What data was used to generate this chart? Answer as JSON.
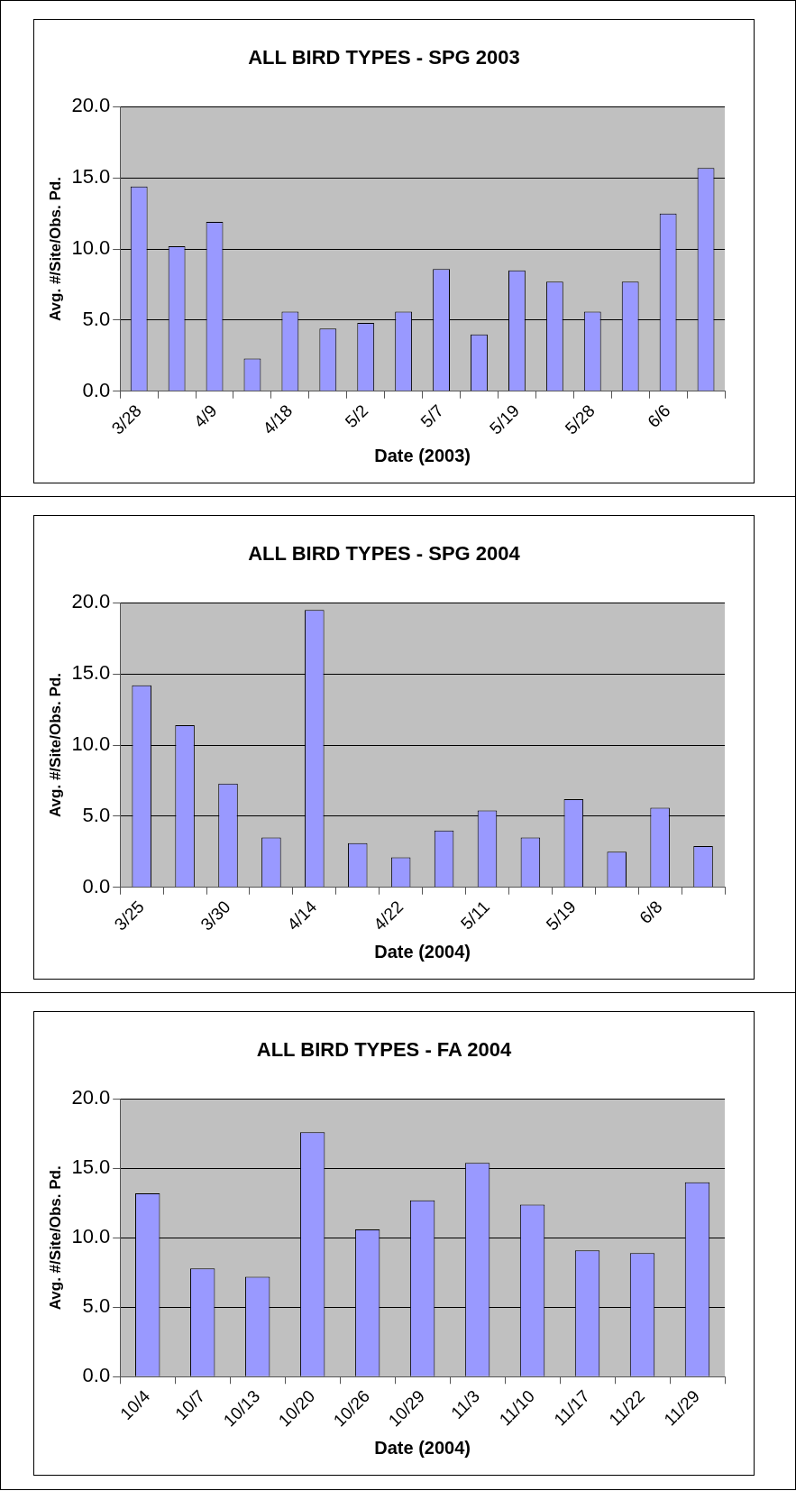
{
  "chart_data": [
    {
      "type": "bar",
      "title": "ALL BIRD TYPES - SPG 2003",
      "xlabel": "Date (2003)",
      "ylabel": "Avg. #/Site/Obs. Pd.",
      "categories": [
        "3/28",
        null,
        "4/9",
        null,
        "4/18",
        null,
        "5/2",
        null,
        "5/7",
        null,
        "5/19",
        null,
        "5/28",
        null,
        "6/6",
        null
      ],
      "values": [
        14.4,
        10.2,
        11.9,
        2.3,
        5.6,
        4.4,
        4.8,
        5.6,
        8.6,
        4.0,
        8.5,
        7.7,
        5.6,
        7.7,
        12.5,
        15.7
      ],
      "color": "#9999ff",
      "ylim": [
        0,
        20
      ],
      "yticks": [
        {
          "value": 0,
          "label": "0.0"
        },
        {
          "value": 5,
          "label": "5.0"
        },
        {
          "value": 10,
          "label": "10.0"
        },
        {
          "value": 15,
          "label": "15.0"
        },
        {
          "value": 20,
          "label": "20.0"
        }
      ],
      "grid": "y"
    },
    {
      "type": "bar",
      "title": "ALL BIRD TYPES - SPG 2004",
      "xlabel": "Date (2004)",
      "ylabel": "Avg. #/Site/Obs. Pd.",
      "categories": [
        "3/25",
        null,
        "3/30",
        null,
        "4/14",
        null,
        "4/22",
        null,
        "5/11",
        null,
        "5/19",
        null,
        "6/8",
        null
      ],
      "values": [
        14.2,
        11.4,
        7.3,
        3.5,
        19.5,
        3.1,
        2.1,
        4.0,
        5.4,
        3.5,
        6.2,
        2.5,
        5.6,
        2.9
      ],
      "color": "#9999ff",
      "ylim": [
        0,
        20
      ],
      "yticks": [
        {
          "value": 0,
          "label": "0.0"
        },
        {
          "value": 5,
          "label": "5.0"
        },
        {
          "value": 10,
          "label": "10.0"
        },
        {
          "value": 15,
          "label": "15.0"
        },
        {
          "value": 20,
          "label": "20.0"
        }
      ],
      "grid": "y"
    },
    {
      "type": "bar",
      "title": "ALL BIRD TYPES - FA 2004",
      "xlabel": "Date (2004)",
      "ylabel": "Avg. #/Site/Obs. Pd.",
      "categories": [
        "10/4",
        "10/7",
        "10/13",
        "10/20",
        "10/26",
        "10/29",
        "11/3",
        "11/10",
        "11/17",
        "11/22",
        "11/29"
      ],
      "values": [
        13.2,
        7.8,
        7.2,
        17.6,
        10.6,
        12.7,
        15.4,
        12.4,
        9.1,
        8.9,
        14.0
      ],
      "color": "#9999ff",
      "ylim": [
        0,
        20
      ],
      "yticks": [
        {
          "value": 0,
          "label": "0.0"
        },
        {
          "value": 5,
          "label": "5.0"
        },
        {
          "value": 10,
          "label": "10.0"
        },
        {
          "value": 15,
          "label": "15.0"
        },
        {
          "value": 20,
          "label": "20.0"
        }
      ],
      "grid": "y"
    }
  ]
}
